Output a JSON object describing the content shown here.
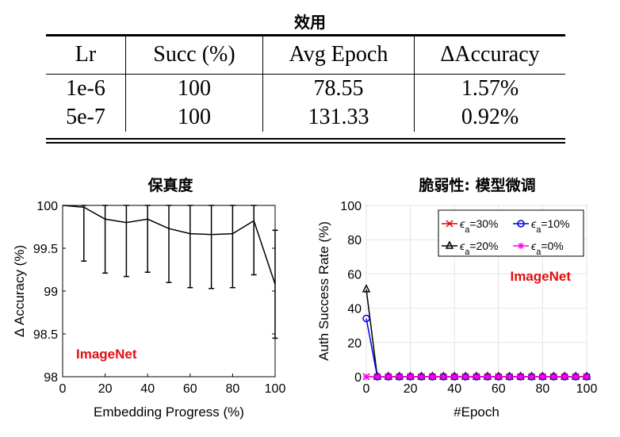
{
  "table": {
    "title": "效用",
    "headers": [
      "Lr",
      "Succ (%)",
      "Avg Epoch",
      "ΔAccuracy"
    ],
    "rows": [
      [
        "1e-6",
        "100",
        "78.55",
        "1.57%"
      ],
      [
        "5e-7",
        "100",
        "131.33",
        "0.92%"
      ]
    ]
  },
  "chart_data": [
    {
      "type": "line",
      "title": "保真度",
      "xlabel": "Embedding Progress (%)",
      "ylabel": "Δ Accuracy (%)",
      "xlim": [
        0,
        100
      ],
      "ylim": [
        98,
        100
      ],
      "xticks": [
        "0",
        "20",
        "40",
        "60",
        "80",
        "100"
      ],
      "yticks": [
        "98",
        "98.5",
        "99",
        "99.5",
        "100"
      ],
      "grid": false,
      "annotation": "ImageNet",
      "annotation_color": "#e01010",
      "series": [
        {
          "x": [
            0,
            10,
            20,
            30,
            40,
            50,
            60,
            70,
            80,
            90,
            100
          ],
          "y": [
            100,
            99.98,
            99.84,
            99.8,
            99.84,
            99.73,
            99.67,
            99.66,
            99.67,
            99.82,
            99.08
          ],
          "err_low": [
            100,
            99.35,
            99.21,
            99.17,
            99.22,
            99.1,
            99.04,
            99.03,
            99.04,
            99.19,
            98.45
          ],
          "err_high": [
            100,
            100,
            100,
            100,
            100,
            100,
            100,
            100,
            100,
            100,
            99.71
          ],
          "color": "#000000"
        }
      ]
    },
    {
      "type": "line",
      "title": "脆弱性: 模型微调",
      "xlabel": "#Epoch",
      "ylabel": "Auth Success Rate (%)",
      "xlim": [
        0,
        100
      ],
      "ylim": [
        0,
        100
      ],
      "xticks": [
        "0",
        "20",
        "40",
        "60",
        "80",
        "100"
      ],
      "yticks": [
        "0",
        "20",
        "40",
        "60",
        "80",
        "100"
      ],
      "grid": true,
      "legend": "top-right",
      "annotation": "ImageNet",
      "annotation_color": "#e01010",
      "x": [
        0,
        5,
        10,
        15,
        20,
        25,
        30,
        35,
        40,
        45,
        50,
        55,
        60,
        65,
        70,
        75,
        80,
        85,
        90,
        95,
        100
      ],
      "series": [
        {
          "name": "ϵ_a=30%",
          "symbol": "ϵ",
          "sub": "a",
          "suffix": "=30%",
          "color": "#e00000",
          "marker": "x",
          "values": [
            0,
            0,
            0,
            0,
            0,
            0,
            0,
            0,
            0,
            0,
            0,
            0,
            0,
            0,
            0,
            0,
            0,
            0,
            0,
            0,
            0
          ]
        },
        {
          "name": "ϵ_a=10%",
          "symbol": "ϵ",
          "sub": "a",
          "suffix": "=10%",
          "color": "#0000e0",
          "marker": "o",
          "values": [
            34,
            0,
            0,
            0,
            0,
            0,
            0,
            0,
            0,
            0,
            0,
            0,
            0,
            0,
            0,
            0,
            0,
            0,
            0,
            0,
            0
          ]
        },
        {
          "name": "ϵ_a=20%",
          "symbol": "ϵ",
          "sub": "a",
          "suffix": "=20%",
          "color": "#000000",
          "marker": "triangle",
          "values": [
            51,
            0,
            0,
            0,
            0,
            0,
            0,
            0,
            0,
            0,
            0,
            0,
            0,
            0,
            0,
            0,
            0,
            0,
            0,
            0,
            0
          ]
        },
        {
          "name": "ϵ_a=0%",
          "symbol": "ϵ",
          "sub": "a",
          "suffix": "=0%",
          "color": "#ff00ff",
          "marker": "star",
          "values": [
            0,
            0,
            0,
            0,
            0,
            0,
            0,
            0,
            0,
            0,
            0,
            0,
            0,
            0,
            0,
            0,
            0,
            0,
            0,
            0,
            0
          ]
        }
      ]
    }
  ]
}
